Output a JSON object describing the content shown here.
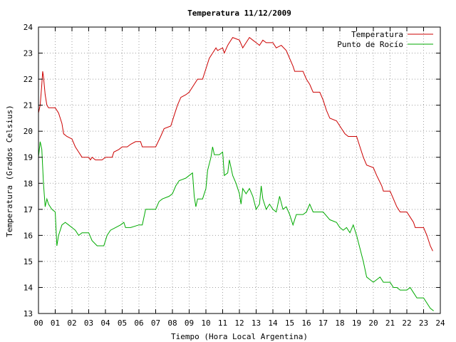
{
  "chart_data": {
    "type": "line",
    "title": "Temperatura 11/12/2009",
    "xlabel": "Tiempo (Hora Local Argentina)",
    "ylabel": "Temperatura (Grados Celsius)",
    "xlim": [
      0,
      24
    ],
    "ylim": [
      13,
      24
    ],
    "x_ticks": [
      "00",
      "01",
      "02",
      "03",
      "04",
      "05",
      "06",
      "07",
      "08",
      "09",
      "10",
      "11",
      "12",
      "13",
      "14",
      "15",
      "16",
      "17",
      "18",
      "19",
      "20",
      "21",
      "22",
      "23",
      "24"
    ],
    "y_ticks": [
      13,
      14,
      15,
      16,
      17,
      18,
      19,
      20,
      21,
      22,
      23,
      24
    ],
    "grid": true,
    "legend_position": "top-right",
    "series": [
      {
        "name": "Temperatura",
        "color": "#cc0000",
        "points": [
          [
            0.0,
            20.7
          ],
          [
            0.1,
            21.0
          ],
          [
            0.2,
            21.8
          ],
          [
            0.25,
            22.3
          ],
          [
            0.3,
            22.1
          ],
          [
            0.4,
            21.4
          ],
          [
            0.5,
            21.0
          ],
          [
            0.6,
            20.9
          ],
          [
            1.0,
            20.9
          ],
          [
            1.2,
            20.7
          ],
          [
            1.4,
            20.3
          ],
          [
            1.5,
            19.9
          ],
          [
            1.7,
            19.8
          ],
          [
            2.0,
            19.7
          ],
          [
            2.2,
            19.4
          ],
          [
            2.4,
            19.2
          ],
          [
            2.6,
            19.0
          ],
          [
            3.0,
            19.0
          ],
          [
            3.1,
            18.9
          ],
          [
            3.2,
            19.0
          ],
          [
            3.4,
            18.9
          ],
          [
            3.6,
            18.9
          ],
          [
            3.8,
            18.9
          ],
          [
            4.0,
            19.0
          ],
          [
            4.4,
            19.0
          ],
          [
            4.5,
            19.2
          ],
          [
            4.8,
            19.3
          ],
          [
            5.0,
            19.4
          ],
          [
            5.3,
            19.4
          ],
          [
            5.5,
            19.5
          ],
          [
            5.8,
            19.6
          ],
          [
            6.1,
            19.6
          ],
          [
            6.2,
            19.4
          ],
          [
            6.5,
            19.4
          ],
          [
            7.0,
            19.4
          ],
          [
            7.3,
            19.8
          ],
          [
            7.5,
            20.1
          ],
          [
            7.9,
            20.2
          ],
          [
            8.1,
            20.6
          ],
          [
            8.3,
            21.0
          ],
          [
            8.5,
            21.3
          ],
          [
            8.8,
            21.4
          ],
          [
            9.0,
            21.5
          ],
          [
            9.3,
            21.8
          ],
          [
            9.5,
            22.0
          ],
          [
            9.8,
            22.0
          ],
          [
            10.0,
            22.4
          ],
          [
            10.2,
            22.8
          ],
          [
            10.4,
            23.0
          ],
          [
            10.6,
            23.2
          ],
          [
            10.7,
            23.1
          ],
          [
            11.0,
            23.2
          ],
          [
            11.1,
            23.0
          ],
          [
            11.3,
            23.3
          ],
          [
            11.4,
            23.4
          ],
          [
            11.6,
            23.6
          ],
          [
            12.0,
            23.5
          ],
          [
            12.2,
            23.2
          ],
          [
            12.4,
            23.4
          ],
          [
            12.6,
            23.6
          ],
          [
            12.8,
            23.5
          ],
          [
            13.0,
            23.4
          ],
          [
            13.2,
            23.3
          ],
          [
            13.4,
            23.5
          ],
          [
            13.6,
            23.4
          ],
          [
            13.8,
            23.4
          ],
          [
            14.0,
            23.4
          ],
          [
            14.2,
            23.2
          ],
          [
            14.5,
            23.3
          ],
          [
            14.8,
            23.1
          ],
          [
            15.0,
            22.8
          ],
          [
            15.2,
            22.5
          ],
          [
            15.3,
            22.3
          ],
          [
            15.8,
            22.3
          ],
          [
            16.0,
            22.0
          ],
          [
            16.2,
            21.8
          ],
          [
            16.4,
            21.5
          ],
          [
            16.8,
            21.5
          ],
          [
            17.0,
            21.2
          ],
          [
            17.2,
            20.8
          ],
          [
            17.4,
            20.5
          ],
          [
            17.8,
            20.4
          ],
          [
            18.0,
            20.2
          ],
          [
            18.3,
            19.9
          ],
          [
            18.5,
            19.8
          ],
          [
            19.0,
            19.8
          ],
          [
            19.2,
            19.4
          ],
          [
            19.4,
            19.0
          ],
          [
            19.6,
            18.7
          ],
          [
            20.0,
            18.6
          ],
          [
            20.2,
            18.3
          ],
          [
            20.5,
            17.9
          ],
          [
            20.6,
            17.7
          ],
          [
            21.0,
            17.7
          ],
          [
            21.2,
            17.4
          ],
          [
            21.4,
            17.1
          ],
          [
            21.6,
            16.9
          ],
          [
            22.0,
            16.9
          ],
          [
            22.2,
            16.7
          ],
          [
            22.4,
            16.5
          ],
          [
            22.5,
            16.3
          ],
          [
            23.0,
            16.3
          ],
          [
            23.2,
            16.0
          ],
          [
            23.4,
            15.6
          ],
          [
            23.55,
            15.4
          ]
        ]
      },
      {
        "name": "Punto de Rocío",
        "color": "#00aa00",
        "points": [
          [
            0.0,
            19.0
          ],
          [
            0.1,
            19.6
          ],
          [
            0.2,
            19.3
          ],
          [
            0.3,
            18.0
          ],
          [
            0.4,
            17.1
          ],
          [
            0.5,
            17.4
          ],
          [
            0.6,
            17.2
          ],
          [
            0.8,
            17.0
          ],
          [
            1.0,
            16.9
          ],
          [
            1.1,
            15.6
          ],
          [
            1.2,
            16.0
          ],
          [
            1.4,
            16.4
          ],
          [
            1.6,
            16.5
          ],
          [
            1.8,
            16.4
          ],
          [
            2.0,
            16.3
          ],
          [
            2.2,
            16.2
          ],
          [
            2.4,
            16.0
          ],
          [
            2.6,
            16.1
          ],
          [
            3.0,
            16.1
          ],
          [
            3.2,
            15.8
          ],
          [
            3.5,
            15.6
          ],
          [
            3.9,
            15.6
          ],
          [
            4.1,
            16.0
          ],
          [
            4.3,
            16.2
          ],
          [
            4.6,
            16.3
          ],
          [
            4.9,
            16.4
          ],
          [
            5.1,
            16.5
          ],
          [
            5.2,
            16.3
          ],
          [
            5.5,
            16.3
          ],
          [
            6.0,
            16.4
          ],
          [
            6.2,
            16.4
          ],
          [
            6.4,
            17.0
          ],
          [
            6.6,
            17.0
          ],
          [
            7.0,
            17.0
          ],
          [
            7.2,
            17.3
          ],
          [
            7.4,
            17.4
          ],
          [
            7.8,
            17.5
          ],
          [
            8.0,
            17.6
          ],
          [
            8.2,
            17.9
          ],
          [
            8.4,
            18.1
          ],
          [
            8.8,
            18.2
          ],
          [
            9.0,
            18.3
          ],
          [
            9.2,
            18.4
          ],
          [
            9.3,
            17.5
          ],
          [
            9.4,
            17.1
          ],
          [
            9.5,
            17.4
          ],
          [
            9.8,
            17.4
          ],
          [
            10.0,
            17.8
          ],
          [
            10.1,
            18.5
          ],
          [
            10.3,
            19.0
          ],
          [
            10.4,
            19.4
          ],
          [
            10.5,
            19.1
          ],
          [
            10.8,
            19.1
          ],
          [
            11.0,
            19.2
          ],
          [
            11.1,
            18.3
          ],
          [
            11.3,
            18.4
          ],
          [
            11.4,
            18.9
          ],
          [
            11.6,
            18.3
          ],
          [
            11.8,
            18.0
          ],
          [
            12.0,
            17.6
          ],
          [
            12.1,
            17.2
          ],
          [
            12.2,
            17.8
          ],
          [
            12.4,
            17.6
          ],
          [
            12.6,
            17.8
          ],
          [
            12.8,
            17.5
          ],
          [
            13.0,
            17.0
          ],
          [
            13.2,
            17.2
          ],
          [
            13.3,
            17.9
          ],
          [
            13.4,
            17.4
          ],
          [
            13.6,
            17.0
          ],
          [
            13.8,
            17.2
          ],
          [
            14.0,
            17.0
          ],
          [
            14.2,
            16.9
          ],
          [
            14.4,
            17.5
          ],
          [
            14.6,
            17.0
          ],
          [
            14.8,
            17.1
          ],
          [
            15.0,
            16.8
          ],
          [
            15.2,
            16.4
          ],
          [
            15.4,
            16.8
          ],
          [
            15.8,
            16.8
          ],
          [
            16.0,
            16.9
          ],
          [
            16.2,
            17.2
          ],
          [
            16.4,
            16.9
          ],
          [
            16.8,
            16.9
          ],
          [
            17.0,
            16.9
          ],
          [
            17.4,
            16.6
          ],
          [
            17.8,
            16.5
          ],
          [
            18.0,
            16.3
          ],
          [
            18.2,
            16.2
          ],
          [
            18.4,
            16.3
          ],
          [
            18.6,
            16.1
          ],
          [
            18.8,
            16.4
          ],
          [
            19.0,
            16.0
          ],
          [
            19.2,
            15.5
          ],
          [
            19.4,
            15.0
          ],
          [
            19.6,
            14.4
          ],
          [
            19.8,
            14.3
          ],
          [
            20.0,
            14.2
          ],
          [
            20.2,
            14.3
          ],
          [
            20.4,
            14.4
          ],
          [
            20.6,
            14.2
          ],
          [
            21.0,
            14.2
          ],
          [
            21.2,
            14.0
          ],
          [
            21.4,
            14.0
          ],
          [
            21.6,
            13.9
          ],
          [
            22.0,
            13.9
          ],
          [
            22.2,
            14.0
          ],
          [
            22.4,
            13.8
          ],
          [
            22.6,
            13.6
          ],
          [
            23.0,
            13.6
          ],
          [
            23.2,
            13.4
          ],
          [
            23.4,
            13.2
          ],
          [
            23.6,
            13.1
          ]
        ]
      }
    ]
  }
}
